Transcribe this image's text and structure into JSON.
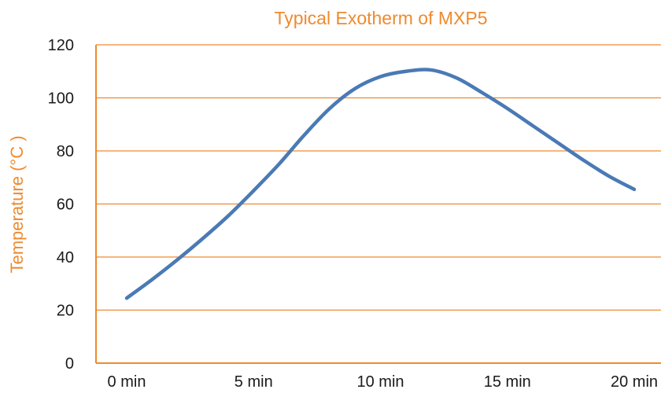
{
  "colors": {
    "accent": "#ef8a2e",
    "series": "#4a7ab5",
    "text": "#1a1a1a",
    "background": "#ffffff"
  },
  "chart_data": {
    "type": "line",
    "title": "Typical Exotherm of MXP5",
    "xlabel": "",
    "ylabel": "Temperature (°C )",
    "x_categories": [
      "0 min",
      "5 min",
      "10 min",
      "15 min",
      "20 min"
    ],
    "xlim": [
      0,
      20
    ],
    "ylim": [
      0,
      120
    ],
    "y_ticks": [
      0,
      20,
      40,
      60,
      80,
      100,
      120
    ],
    "grid": "horizontal",
    "legend": "none",
    "series": [
      {
        "x": [
          0,
          1,
          2,
          3,
          4,
          5,
          6,
          7,
          8,
          9,
          10,
          11,
          12,
          13,
          14,
          15,
          16,
          17,
          18,
          19,
          20
        ],
        "y": [
          24.5,
          31.5,
          39,
          47,
          55.5,
          65,
          75,
          86,
          96,
          103.5,
          108,
          110,
          110.5,
          107.5,
          102,
          96,
          89.5,
          83,
          76.5,
          70.5,
          65.5
        ]
      }
    ]
  }
}
